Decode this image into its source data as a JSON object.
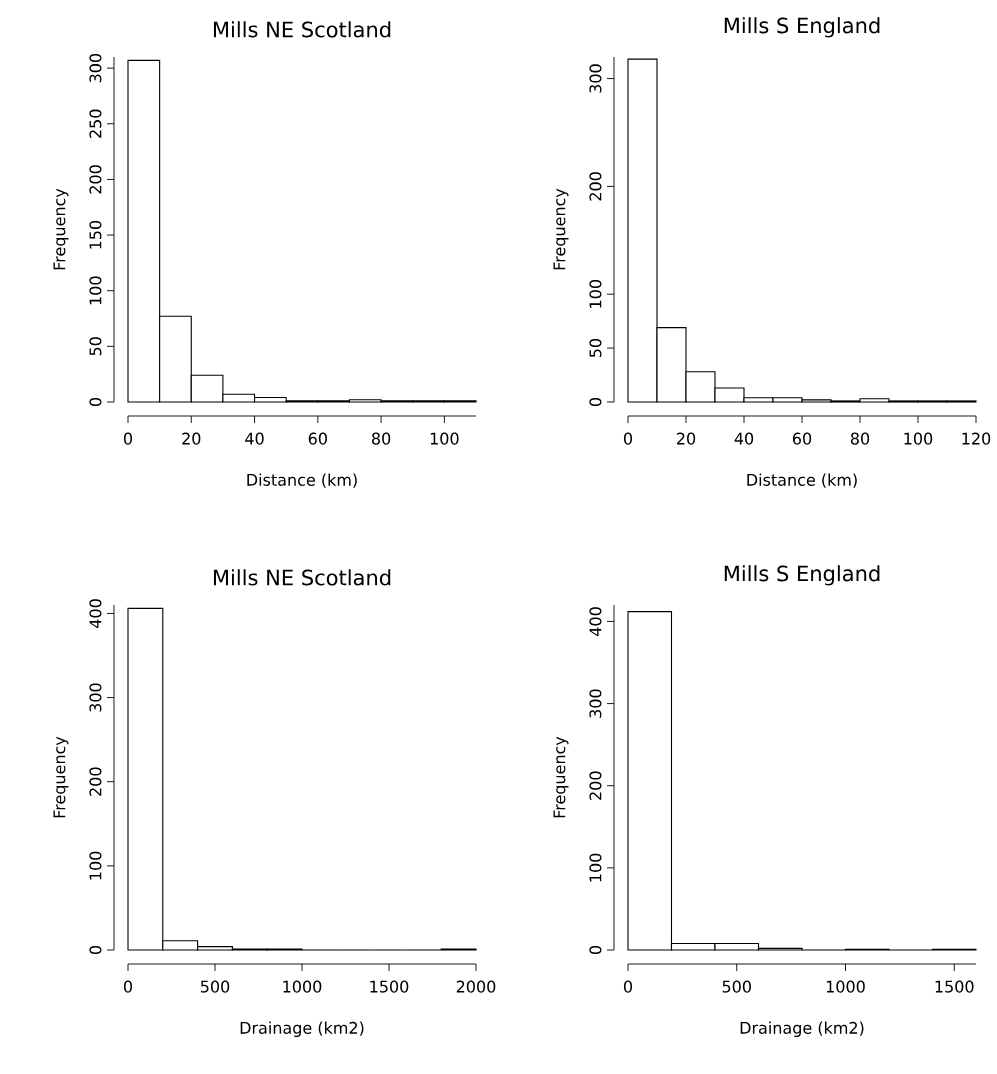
{
  "chart_data": [
    {
      "type": "histogram",
      "title": "Mills NE Scotland",
      "xlabel": "Distance (km)",
      "ylabel": "Frequency",
      "bins": [
        0,
        10,
        20,
        30,
        40,
        50,
        60,
        70,
        80,
        90,
        100,
        110
      ],
      "values": [
        307,
        77,
        24,
        7,
        4,
        1,
        1,
        2,
        1,
        1,
        1
      ],
      "xlim": [
        0,
        110
      ],
      "ylim": [
        0,
        310
      ],
      "xticks": [
        0,
        20,
        40,
        60,
        80,
        100
      ],
      "yticks": [
        0,
        50,
        100,
        150,
        200,
        250,
        300
      ]
    },
    {
      "type": "histogram",
      "title": "Mills S England",
      "xlabel": "Distance (km)",
      "ylabel": "Frequency",
      "bins": [
        0,
        10,
        20,
        30,
        40,
        50,
        60,
        70,
        80,
        90,
        100,
        110,
        120
      ],
      "values": [
        318,
        69,
        28,
        13,
        4,
        4,
        2,
        1,
        3,
        1,
        1,
        1
      ],
      "xlim": [
        0,
        120
      ],
      "ylim": [
        0,
        320
      ],
      "xticks": [
        0,
        20,
        40,
        60,
        80,
        100,
        120
      ],
      "yticks": [
        0,
        50,
        100,
        200,
        300
      ]
    },
    {
      "type": "histogram",
      "title": "Mills NE Scotland",
      "xlabel": "Drainage (km2)",
      "ylabel": "Frequency",
      "bins": [
        0,
        200,
        400,
        600,
        800,
        1000,
        1200,
        1400,
        1600,
        1800,
        2000
      ],
      "values": [
        406,
        11,
        4,
        1,
        1,
        0,
        0,
        0,
        0,
        1
      ],
      "xlim": [
        0,
        2000
      ],
      "ylim": [
        0,
        410
      ],
      "xticks": [
        0,
        500,
        1000,
        1500,
        2000
      ],
      "yticks": [
        0,
        100,
        200,
        300,
        400
      ]
    },
    {
      "type": "histogram",
      "title": "Mills S England",
      "xlabel": "Drainage (km2)",
      "ylabel": "Frequency",
      "bins": [
        0,
        200,
        400,
        600,
        800,
        1000,
        1200,
        1400,
        1600
      ],
      "values": [
        412,
        8,
        8,
        2,
        0,
        1,
        0,
        1
      ],
      "xlim": [
        0,
        1600
      ],
      "ylim": [
        0,
        420
      ],
      "xticks": [
        0,
        500,
        1000,
        1500
      ],
      "yticks": [
        0,
        100,
        200,
        300,
        400
      ]
    }
  ]
}
